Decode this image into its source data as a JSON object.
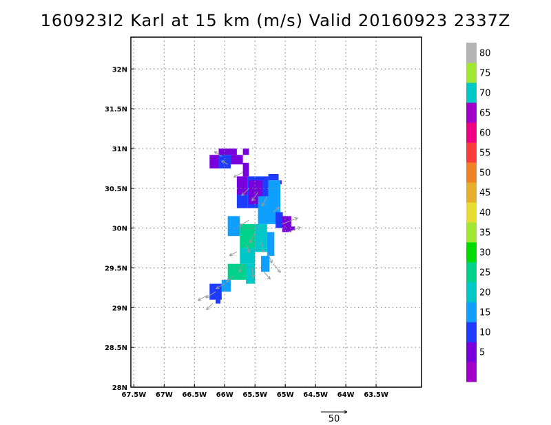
{
  "chart_data": {
    "type": "heatmap",
    "title": "160923I2 Karl at 15 km (m/s) Valid 20160923 2337Z",
    "xlabel": "",
    "ylabel": "",
    "xlim": [
      -67.55,
      -62.75
    ],
    "ylim": [
      28.0,
      32.4
    ],
    "x_ticks": [
      -67.5,
      -67.0,
      -66.5,
      -66.0,
      -65.5,
      -65.0,
      -64.5,
      -64.0,
      -63.5
    ],
    "x_tick_labels": [
      "67.5W",
      "67W",
      "66.5W",
      "66W",
      "65.5W",
      "65W",
      "64.5W",
      "64W",
      "63.5W"
    ],
    "y_ticks": [
      28.0,
      28.5,
      29.0,
      29.5,
      30.0,
      30.5,
      31.0,
      31.5,
      32.0
    ],
    "y_tick_labels": [
      "28N",
      "28.5N",
      "29N",
      "29.5N",
      "30N",
      "30.5N",
      "31N",
      "31.5N",
      "32N"
    ],
    "grid": true,
    "colorbar": {
      "labels": [
        "5",
        "10",
        "15",
        "20",
        "25",
        "30",
        "35",
        "40",
        "45",
        "50",
        "55",
        "60",
        "65",
        "70",
        "75",
        "80"
      ],
      "colors": [
        "#a000c8",
        "#7800dc",
        "#1e3cff",
        "#0fa0ff",
        "#00c8c8",
        "#00d28c",
        "#00dc00",
        "#a0e632",
        "#e6dc32",
        "#e6af2d",
        "#f08228",
        "#fa3c3c",
        "#f00082",
        "#a000c8",
        "#00c8c8",
        "#a0e632",
        "#b4b4b4"
      ]
    },
    "cells": [
      {
        "lon": -66.1,
        "lat": 30.92,
        "w": 0.3,
        "h": 0.08,
        "value": 5
      },
      {
        "lon": -65.7,
        "lat": 30.92,
        "w": 0.1,
        "h": 0.08,
        "value": 5
      },
      {
        "lon": -66.25,
        "lat": 30.75,
        "w": 0.15,
        "h": 0.17,
        "value": 5
      },
      {
        "lon": -66.1,
        "lat": 30.75,
        "w": 0.2,
        "h": 0.17,
        "value": 10
      },
      {
        "lon": -65.9,
        "lat": 30.8,
        "w": 0.2,
        "h": 0.12,
        "value": 5
      },
      {
        "lon": -65.7,
        "lat": 30.65,
        "w": 0.1,
        "h": 0.17,
        "value": 5
      },
      {
        "lon": -65.8,
        "lat": 30.42,
        "w": 0.18,
        "h": 0.23,
        "value": 5
      },
      {
        "lon": -65.62,
        "lat": 30.25,
        "w": 0.34,
        "h": 0.4,
        "value": 10
      },
      {
        "lon": -65.28,
        "lat": 30.6,
        "w": 0.17,
        "h": 0.08,
        "value": 10
      },
      {
        "lon": -65.12,
        "lat": 30.55,
        "w": 0.06,
        "h": 0.05,
        "value": 5
      },
      {
        "lon": -65.8,
        "lat": 30.25,
        "w": 0.18,
        "h": 0.17,
        "value": 10
      },
      {
        "lon": -65.6,
        "lat": 30.3,
        "w": 0.22,
        "h": 0.3,
        "value": 5
      },
      {
        "lon": -65.45,
        "lat": 30.05,
        "w": 0.3,
        "h": 0.35,
        "value": 15
      },
      {
        "lon": -65.28,
        "lat": 30.1,
        "w": 0.2,
        "h": 0.5,
        "value": 15
      },
      {
        "lon": -65.16,
        "lat": 30.0,
        "w": 0.12,
        "h": 0.2,
        "value": 10
      },
      {
        "lon": -65.05,
        "lat": 29.95,
        "w": 0.15,
        "h": 0.2,
        "value": 5
      },
      {
        "lon": -64.9,
        "lat": 29.97,
        "w": 0.06,
        "h": 0.05,
        "value": 5
      },
      {
        "lon": -65.95,
        "lat": 29.9,
        "w": 0.2,
        "h": 0.25,
        "value": 15
      },
      {
        "lon": -65.75,
        "lat": 29.75,
        "w": 0.25,
        "h": 0.3,
        "value": 25
      },
      {
        "lon": -65.5,
        "lat": 29.7,
        "w": 0.2,
        "h": 0.35,
        "value": 20
      },
      {
        "lon": -65.3,
        "lat": 29.65,
        "w": 0.12,
        "h": 0.3,
        "value": 15
      },
      {
        "lon": -65.4,
        "lat": 29.45,
        "w": 0.14,
        "h": 0.2,
        "value": 15
      },
      {
        "lon": -65.75,
        "lat": 29.55,
        "w": 0.25,
        "h": 0.2,
        "value": 20
      },
      {
        "lon": -65.95,
        "lat": 29.35,
        "w": 0.3,
        "h": 0.2,
        "value": 25
      },
      {
        "lon": -65.65,
        "lat": 29.3,
        "w": 0.15,
        "h": 0.25,
        "value": 20
      },
      {
        "lon": -66.05,
        "lat": 29.2,
        "w": 0.15,
        "h": 0.15,
        "value": 15
      },
      {
        "lon": -66.25,
        "lat": 29.1,
        "w": 0.2,
        "h": 0.2,
        "value": 10
      },
      {
        "lon": -66.15,
        "lat": 29.05,
        "w": 0.08,
        "h": 0.06,
        "value": 10
      }
    ],
    "vectors": [
      {
        "lon": -66.05,
        "lat": 30.9,
        "u": -12,
        "v": 8
      },
      {
        "lon": -65.95,
        "lat": 30.8,
        "u": -10,
        "v": 6
      },
      {
        "lon": -65.7,
        "lat": 30.7,
        "u": -15,
        "v": -8
      },
      {
        "lon": -65.6,
        "lat": 30.5,
        "u": -12,
        "v": -12
      },
      {
        "lon": -65.45,
        "lat": 30.45,
        "u": -10,
        "v": -14
      },
      {
        "lon": -65.3,
        "lat": 30.4,
        "u": -8,
        "v": -16
      },
      {
        "lon": -65.2,
        "lat": 30.2,
        "u": 10,
        "v": 8
      },
      {
        "lon": -65.05,
        "lat": 30.05,
        "u": 25,
        "v": 10
      },
      {
        "lon": -64.95,
        "lat": 29.95,
        "u": 20,
        "v": 8
      },
      {
        "lon": -65.6,
        "lat": 30.1,
        "u": -16,
        "v": -10
      },
      {
        "lon": -65.5,
        "lat": 29.95,
        "u": -8,
        "v": -18
      },
      {
        "lon": -65.4,
        "lat": 29.85,
        "u": 4,
        "v": -20
      },
      {
        "lon": -65.3,
        "lat": 29.7,
        "u": 8,
        "v": -18
      },
      {
        "lon": -65.2,
        "lat": 29.55,
        "u": 12,
        "v": -14
      },
      {
        "lon": -65.35,
        "lat": 29.45,
        "u": 10,
        "v": -12
      },
      {
        "lon": -65.55,
        "lat": 29.5,
        "u": 2,
        "v": -16
      },
      {
        "lon": -65.7,
        "lat": 29.55,
        "u": -6,
        "v": -14
      },
      {
        "lon": -65.85,
        "lat": 29.4,
        "u": -12,
        "v": -10
      },
      {
        "lon": -66.0,
        "lat": 29.3,
        "u": -14,
        "v": -8
      },
      {
        "lon": -66.15,
        "lat": 29.2,
        "u": -16,
        "v": -10
      },
      {
        "lon": -66.3,
        "lat": 29.15,
        "u": -14,
        "v": -8
      },
      {
        "lon": -66.2,
        "lat": 29.05,
        "u": -10,
        "v": -10
      },
      {
        "lon": -65.8,
        "lat": 29.7,
        "u": -12,
        "v": -6
      },
      {
        "lon": -65.65,
        "lat": 29.8,
        "u": 6,
        "v": -14
      }
    ],
    "reference_vector": {
      "label": "50",
      "magnitude": 50
    }
  }
}
